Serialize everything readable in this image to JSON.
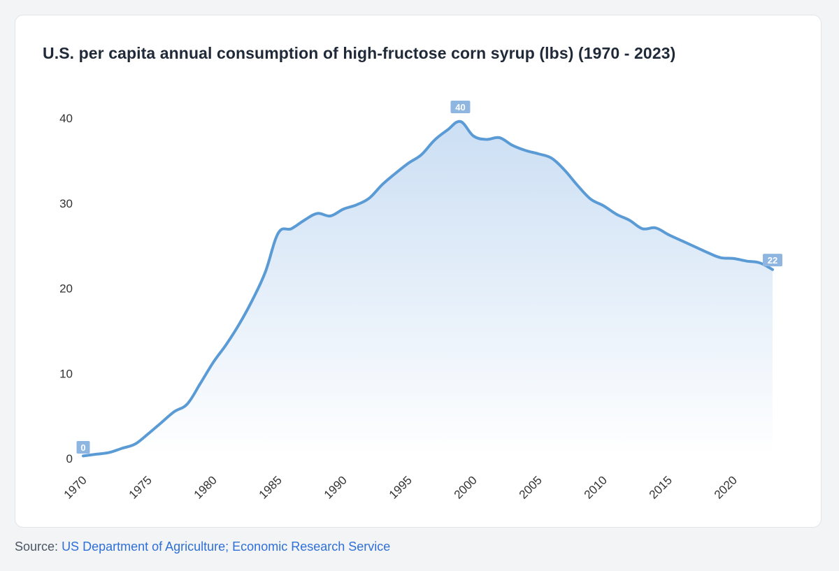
{
  "title": "U.S. per capita annual consumption of high-fructose corn syrup (lbs) (1970 - 2023)",
  "source": {
    "prefix": "Source:",
    "link_text": "US Department of Agriculture; Economic Research Service"
  },
  "colors": {
    "line": "#5b9bd5",
    "badge": "#8fb6e0",
    "area_top": "#c9ddf3",
    "link": "#2f6fd6"
  },
  "chart_data": {
    "type": "area",
    "title": "U.S. per capita annual consumption of high-fructose corn syrup (lbs) (1970 - 2023)",
    "xlabel": "",
    "ylabel": "",
    "ylim": [
      0,
      40
    ],
    "yticks": [
      0,
      10,
      20,
      30,
      40
    ],
    "xticks": [
      1970,
      1975,
      1980,
      1985,
      1990,
      1995,
      2000,
      2005,
      2010,
      2015,
      2020
    ],
    "grid": false,
    "legend": "none",
    "x": [
      1970,
      1971,
      1972,
      1973,
      1974,
      1975,
      1976,
      1977,
      1978,
      1979,
      1980,
      1981,
      1982,
      1983,
      1984,
      1985,
      1986,
      1987,
      1988,
      1989,
      1990,
      1991,
      1992,
      1993,
      1994,
      1995,
      1996,
      1997,
      1998,
      1999,
      2000,
      2001,
      2002,
      2003,
      2004,
      2005,
      2006,
      2007,
      2008,
      2009,
      2010,
      2011,
      2012,
      2013,
      2014,
      2015,
      2016,
      2017,
      2018,
      2019,
      2020,
      2021,
      2022,
      2023
    ],
    "series": [
      {
        "values": [
          0.3,
          0.5,
          0.7,
          1.2,
          1.7,
          2.9,
          4.2,
          5.5,
          6.4,
          8.8,
          11.3,
          13.4,
          15.8,
          18.6,
          21.9,
          26.5,
          27.0,
          28.0,
          28.8,
          28.5,
          29.3,
          29.8,
          30.6,
          32.2,
          33.5,
          34.7,
          35.7,
          37.4,
          38.6,
          39.6,
          37.9,
          37.5,
          37.7,
          36.8,
          36.2,
          35.8,
          35.3,
          33.9,
          32.1,
          30.5,
          29.7,
          28.7,
          28.0,
          27.0,
          27.1,
          26.3,
          25.6,
          24.9,
          24.2,
          23.6,
          23.5,
          23.2,
          23.0,
          22.2
        ]
      }
    ],
    "annotations": [
      {
        "x": 1970,
        "value": 0,
        "label": "0"
      },
      {
        "x": 1999,
        "value": 40,
        "label": "40"
      },
      {
        "x": 2023,
        "value": 22,
        "label": "22"
      }
    ]
  }
}
